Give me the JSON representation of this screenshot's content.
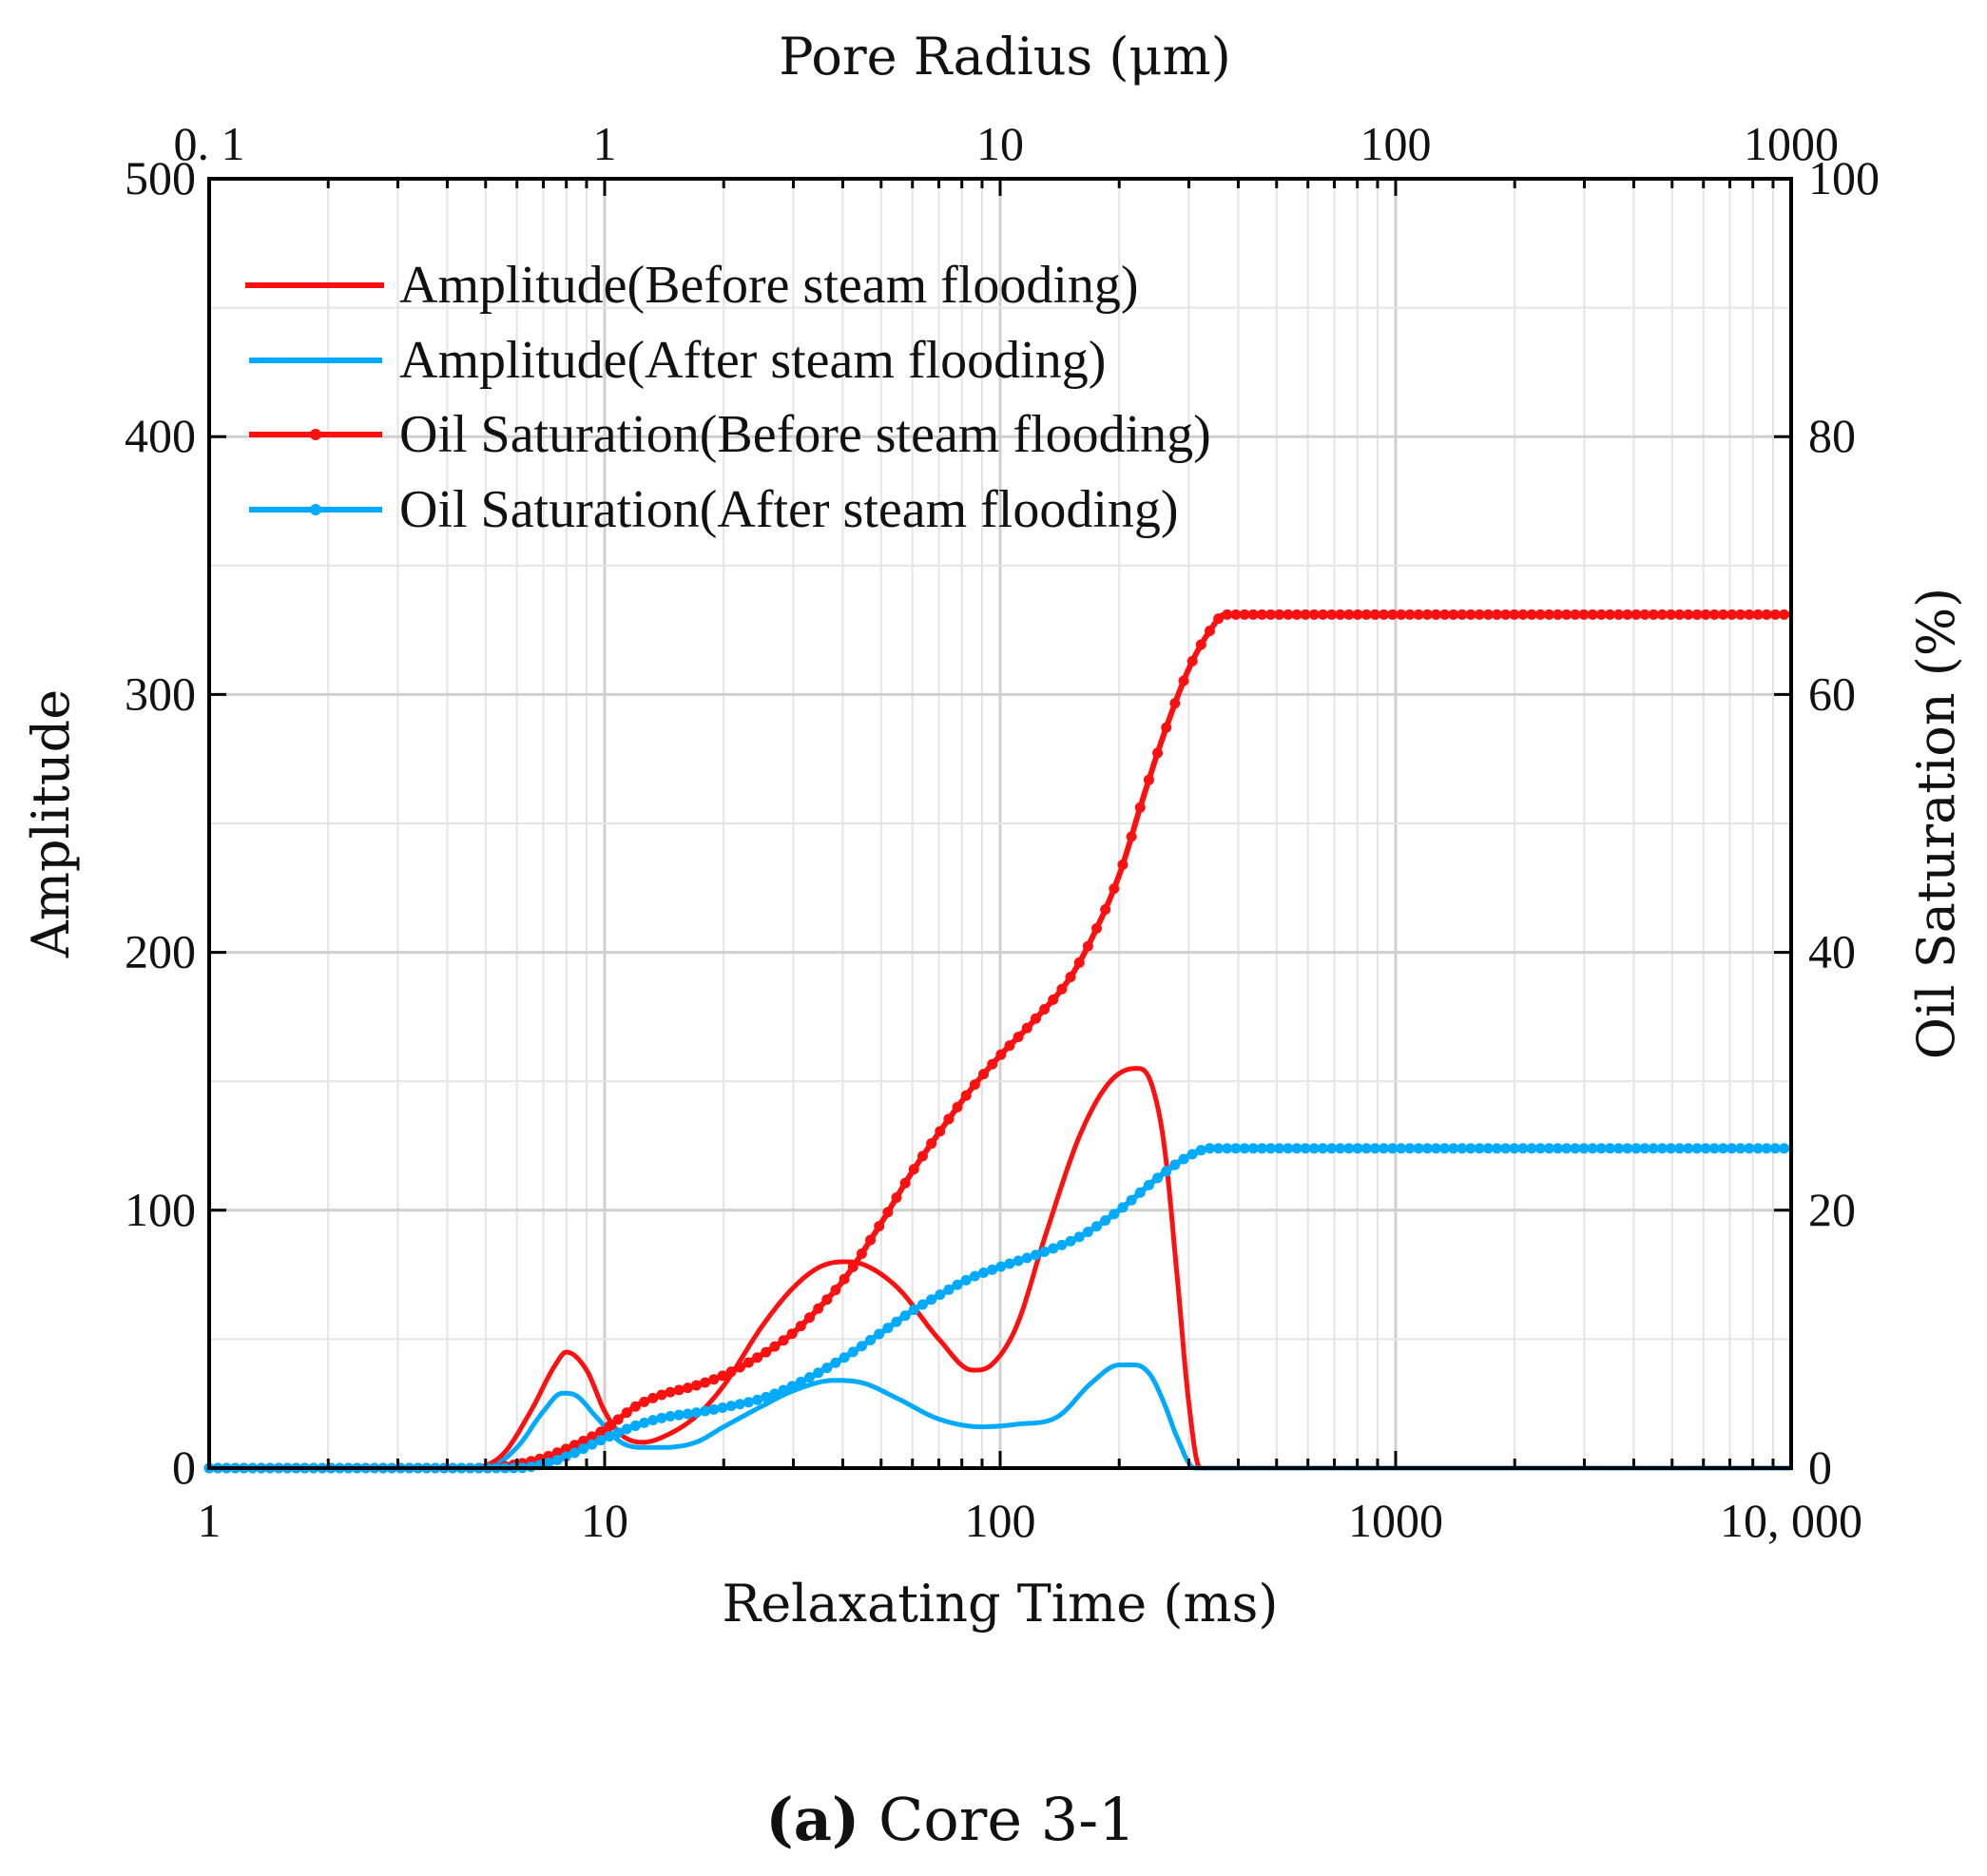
{
  "chart_data": {
    "type": "line",
    "caption_letter": "(a)",
    "caption_text": "Core 3-1",
    "xlabel": "Relaxating Time (ms)",
    "x2label": "Pore Radius (μm)",
    "ylabel": "Amplitude",
    "y2label": "Oil Saturation (%)",
    "xscale": "log",
    "xlim": [
      1,
      10000
    ],
    "x2lim": [
      0.1,
      1000
    ],
    "ylim": [
      0,
      500
    ],
    "y2lim": [
      0,
      100
    ],
    "xticks": [
      {
        "v": 1,
        "label": "1"
      },
      {
        "v": 10,
        "label": "10"
      },
      {
        "v": 100,
        "label": "100"
      },
      {
        "v": 1000,
        "label": "1000"
      },
      {
        "v": 10000,
        "label": "10, 000"
      }
    ],
    "x2ticks": [
      {
        "v": 0.1,
        "label": "0. 1"
      },
      {
        "v": 1,
        "label": "1"
      },
      {
        "v": 10,
        "label": "10"
      },
      {
        "v": 100,
        "label": "100"
      },
      {
        "v": 1000,
        "label": "1000"
      }
    ],
    "yticks": [
      0,
      100,
      200,
      300,
      400,
      500
    ],
    "y2ticks": [
      0,
      20,
      40,
      60,
      80,
      100
    ],
    "grid": true,
    "legend_position": "top-left",
    "series": [
      {
        "name": "Amplitude(Before steam flooding)",
        "axis": "left",
        "color": "#ff1010",
        "markers": false,
        "x": [
          1,
          3,
          4.5,
          5.5,
          6.5,
          7.5,
          8,
          9,
          10,
          11,
          12.5,
          14,
          17,
          20,
          25,
          30,
          35,
          40,
          45,
          55,
          70,
          85,
          95,
          110,
          130,
          160,
          190,
          220,
          240,
          260,
          280,
          300,
          320,
          400,
          10000
        ],
        "y": [
          0,
          0,
          0,
          5,
          22,
          40,
          45,
          38,
          22,
          13,
          10,
          12,
          20,
          32,
          55,
          70,
          78,
          80,
          79,
          70,
          50,
          38,
          40,
          55,
          90,
          130,
          150,
          155,
          150,
          125,
          75,
          25,
          0,
          0,
          0
        ]
      },
      {
        "name": "Amplitude(After steam flooding)",
        "axis": "left",
        "color": "#00aaff",
        "markers": false,
        "x": [
          1,
          4,
          5,
          6,
          7,
          7.8,
          8.5,
          9.5,
          11,
          12.5,
          14,
          17,
          20,
          25,
          30,
          38,
          45,
          55,
          70,
          90,
          110,
          140,
          170,
          200,
          220,
          240,
          260,
          280,
          310,
          400,
          10000
        ],
        "y": [
          0,
          0,
          0,
          8,
          22,
          29,
          28,
          20,
          10,
          8,
          8,
          10,
          16,
          24,
          30,
          34,
          33,
          27,
          19,
          16,
          17,
          20,
          33,
          40,
          40,
          36,
          25,
          12,
          0,
          0,
          0
        ]
      },
      {
        "name": "Oil Saturation(Before steam flooding)",
        "axis": "right",
        "color": "#ff1010",
        "markers": true,
        "x": [
          1,
          5,
          6,
          7,
          8,
          10,
          12,
          14,
          17,
          20,
          25,
          30,
          35,
          40,
          50,
          60,
          70,
          85,
          100,
          120,
          150,
          170,
          200,
          230,
          260,
          300,
          340,
          370,
          10000
        ],
        "y": [
          0,
          0,
          0.3,
          0.8,
          1.5,
          3,
          4.8,
          5.7,
          6.4,
          7.2,
          8.8,
          10.5,
          12.5,
          14.5,
          19,
          23,
          26,
          29.5,
          32,
          34.5,
          38,
          41,
          46,
          52,
          57,
          62,
          65,
          66.2,
          66.2
        ]
      },
      {
        "name": "Oil Saturation(After steam flooding)",
        "axis": "right",
        "color": "#00aaff",
        "markers": true,
        "x": [
          1,
          6,
          7,
          8,
          10,
          12,
          14,
          17,
          20,
          25,
          30,
          40,
          50,
          60,
          70,
          85,
          100,
          130,
          160,
          200,
          250,
          300,
          340,
          370,
          10000
        ],
        "y": [
          0,
          0,
          0.3,
          0.9,
          2.3,
          3.3,
          3.9,
          4.3,
          4.7,
          5.4,
          6.4,
          8.5,
          10.5,
          12.2,
          13.4,
          14.8,
          15.6,
          16.8,
          18,
          20,
          22.5,
          24.2,
          24.8,
          24.8,
          24.8
        ]
      }
    ]
  }
}
